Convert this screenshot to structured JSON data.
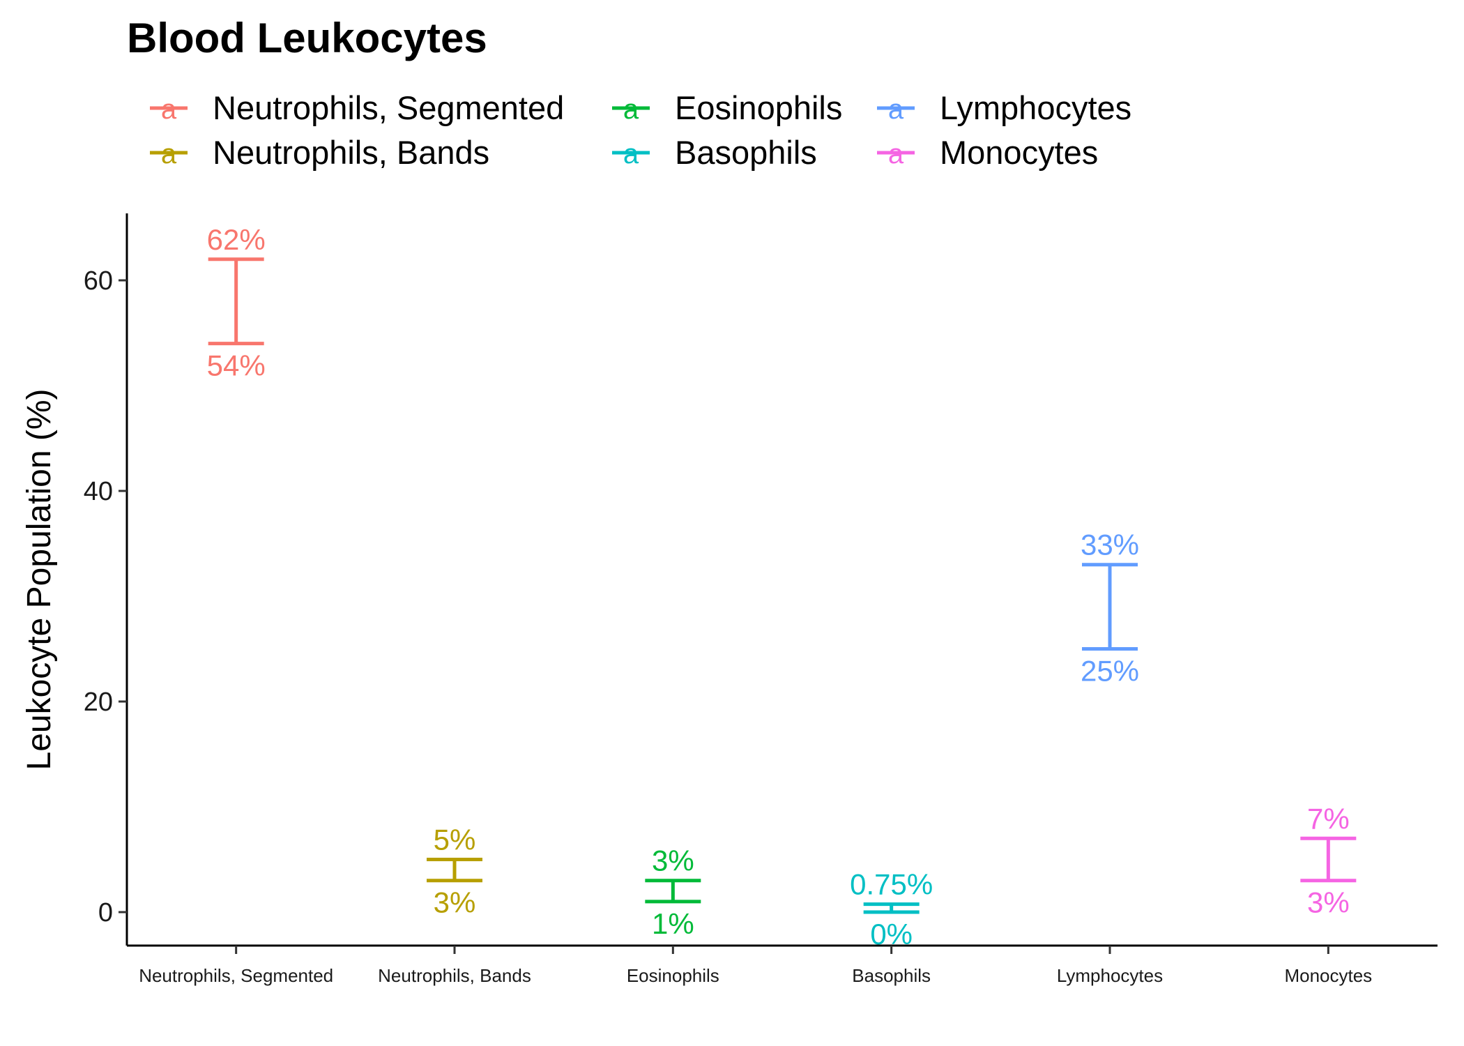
{
  "chart_data": {
    "type": "errorbar",
    "title": "Blood Leukocytes",
    "xlabel": "",
    "ylabel": "Leukocyte Population (%)",
    "ylim": [
      -3.2,
      66
    ],
    "yticks": [
      0,
      20,
      40,
      60
    ],
    "grid": false,
    "legend_position": "top",
    "legend_key_glyph": "a",
    "categories": [
      "Neutrophils, Segmented",
      "Neutrophils, Bands",
      "Eosinophils",
      "Basophils",
      "Lymphocytes",
      "Monocytes"
    ],
    "series": [
      {
        "name": "Neutrophils, Segmented",
        "category": "Neutrophils, Segmented",
        "min": 54,
        "max": 62,
        "min_label": "54%",
        "max_label": "62%",
        "color": "#F8766D"
      },
      {
        "name": "Neutrophils, Bands",
        "category": "Neutrophils, Bands",
        "min": 3,
        "max": 5,
        "min_label": "3%",
        "max_label": "5%",
        "color": "#B79F00"
      },
      {
        "name": "Eosinophils",
        "category": "Eosinophils",
        "min": 1,
        "max": 3,
        "min_label": "1%",
        "max_label": "3%",
        "color": "#00BA38"
      },
      {
        "name": "Basophils",
        "category": "Basophils",
        "min": 0,
        "max": 0.75,
        "min_label": "0%",
        "max_label": "0.75%",
        "color": "#00BFC4"
      },
      {
        "name": "Lymphocytes",
        "category": "Lymphocytes",
        "min": 25,
        "max": 33,
        "min_label": "25%",
        "max_label": "33%",
        "color": "#619CFF"
      },
      {
        "name": "Monocytes",
        "category": "Monocytes",
        "min": 3,
        "max": 7,
        "min_label": "3%",
        "max_label": "7%",
        "color": "#F564E3"
      }
    ],
    "legend_order": [
      [
        "Neutrophils, Segmented",
        "Neutrophils, Bands"
      ],
      [
        "Eosinophils",
        "Basophils"
      ],
      [
        "Lymphocytes",
        "Monocytes"
      ]
    ]
  }
}
